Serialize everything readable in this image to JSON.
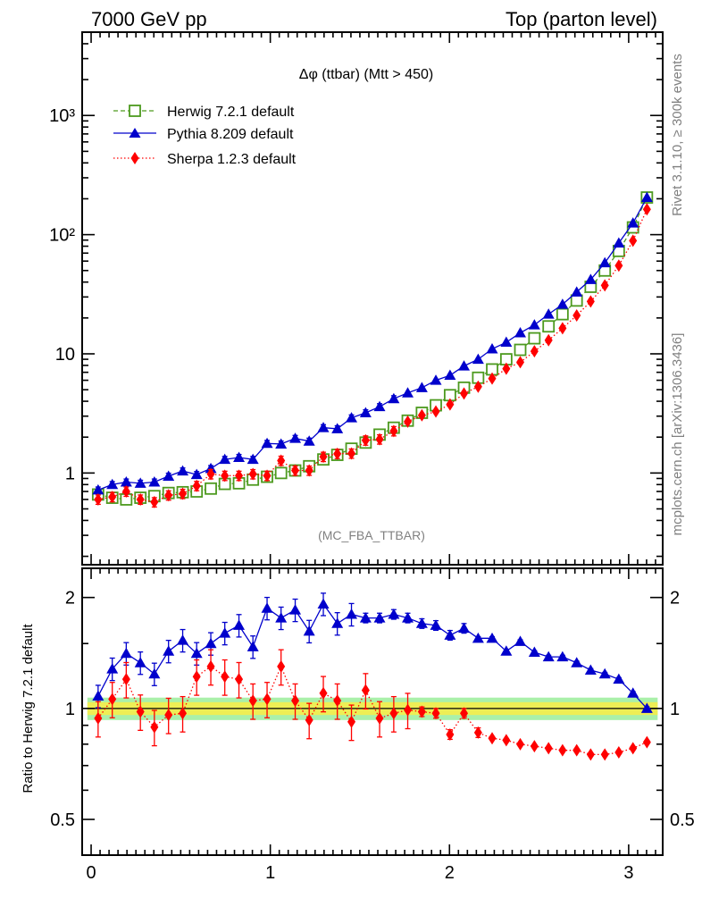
{
  "header": {
    "left": "7000 GeV pp",
    "right": "Top (parton level)"
  },
  "side": {
    "rivet": "Rivet 3.1.10, ≥ 300k events",
    "mcplots": "mcplots.cern.ch [arXiv:1306.3436]"
  },
  "chart_data": [
    {
      "type": "line",
      "panel": "main",
      "title": "Δφ (ttbar) (Mtt > 450)",
      "watermark": "(MC_FBA_TTBAR)",
      "y_scale": "log",
      "ylim": [
        0.17,
        5000
      ],
      "xlim": [
        -0.05,
        3.19
      ],
      "y_ticks": [
        {
          "value": 1,
          "label": "1"
        },
        {
          "value": 10,
          "label": "10"
        },
        {
          "value": 100,
          "label": "10²"
        },
        {
          "value": 1000,
          "label": "10³"
        }
      ],
      "legend_position": "top-left",
      "x": [
        0.039,
        0.118,
        0.196,
        0.275,
        0.353,
        0.432,
        0.511,
        0.589,
        0.668,
        0.746,
        0.825,
        0.903,
        0.982,
        1.06,
        1.139,
        1.217,
        1.296,
        1.374,
        1.453,
        1.532,
        1.61,
        1.689,
        1.767,
        1.846,
        1.924,
        2.003,
        2.081,
        2.16,
        2.238,
        2.317,
        2.395,
        2.474,
        2.553,
        2.631,
        2.71,
        2.788,
        2.867,
        2.945,
        3.024,
        3.102
      ],
      "series": [
        {
          "name": "Herwig 7.2.1 default",
          "color": "#4d9a1f",
          "marker": "open-square",
          "line": "dashed",
          "values": [
            0.66,
            0.62,
            0.6,
            0.62,
            0.64,
            0.68,
            0.69,
            0.7,
            0.74,
            0.81,
            0.82,
            0.88,
            0.93,
            1.0,
            1.05,
            1.14,
            1.3,
            1.42,
            1.6,
            1.8,
            2.1,
            2.4,
            2.75,
            3.2,
            3.7,
            4.5,
            5.2,
            6.3,
            7.4,
            9.0,
            10.8,
            13.5,
            17.0,
            21.5,
            28.0,
            36.5,
            50.0,
            73.0,
            115.0,
            205.0
          ]
        },
        {
          "name": "Pythia 8.209 default",
          "color": "#0000cc",
          "marker": "filled-triangle",
          "line": "solid",
          "values": [
            0.72,
            0.8,
            0.84,
            0.82,
            0.84,
            0.94,
            1.04,
            0.97,
            1.09,
            1.3,
            1.35,
            1.3,
            1.77,
            1.75,
            1.95,
            1.85,
            2.4,
            2.35,
            2.9,
            3.2,
            3.6,
            4.2,
            4.7,
            5.2,
            6.0,
            6.6,
            7.9,
            9.0,
            11.0,
            12.5,
            15.0,
            17.5,
            21.5,
            26.0,
            33.0,
            42.0,
            58.0,
            85.0,
            125.0,
            205.0
          ]
        },
        {
          "name": "Sherpa 1.2.3 default",
          "color": "#ff0000",
          "marker": "filled-diamond",
          "line": "dotted",
          "values": [
            0.6,
            0.63,
            0.7,
            0.6,
            0.57,
            0.65,
            0.67,
            0.78,
            0.98,
            0.95,
            0.95,
            0.98,
            0.95,
            1.27,
            1.05,
            1.05,
            1.37,
            1.45,
            1.46,
            1.88,
            1.92,
            2.25,
            2.7,
            3.05,
            3.28,
            3.76,
            4.65,
            5.3,
            6.2,
            7.5,
            8.5,
            10.5,
            13.0,
            16.4,
            21.0,
            27.5,
            37.5,
            55.0,
            89.0,
            163.0
          ]
        }
      ]
    },
    {
      "type": "line",
      "panel": "ratio",
      "ylabel": "Ratio to Herwig 7.2.1 default",
      "y_scale": "log",
      "ylim": [
        0.4,
        2.4
      ],
      "xlim": [
        -0.05,
        3.19
      ],
      "x_ticks": [
        {
          "value": 0,
          "label": "0"
        },
        {
          "value": 1,
          "label": "1"
        },
        {
          "value": 2,
          "label": "2"
        },
        {
          "value": 3,
          "label": "3"
        }
      ],
      "y_ticks": [
        {
          "value": 0.5,
          "label": "0.5"
        },
        {
          "value": 1,
          "label": "1"
        },
        {
          "value": 2,
          "label": "2"
        }
      ],
      "band": {
        "inner": [
          0.96,
          1.04
        ],
        "outer": [
          0.93,
          1.07
        ],
        "inner_color": "#eeee55",
        "outer_color": "#aaf0aa"
      },
      "x": [
        0.039,
        0.118,
        0.196,
        0.275,
        0.353,
        0.432,
        0.511,
        0.589,
        0.668,
        0.746,
        0.825,
        0.903,
        0.982,
        1.06,
        1.139,
        1.217,
        1.296,
        1.374,
        1.453,
        1.532,
        1.61,
        1.689,
        1.767,
        1.846,
        1.924,
        2.003,
        2.081,
        2.16,
        2.238,
        2.317,
        2.395,
        2.474,
        2.553,
        2.631,
        2.71,
        2.788,
        2.867,
        2.945,
        3.024,
        3.102
      ],
      "series": [
        {
          "name": "Pythia 8.209 default",
          "color": "#0000cc",
          "values": [
            1.08,
            1.28,
            1.41,
            1.33,
            1.24,
            1.43,
            1.53,
            1.41,
            1.5,
            1.6,
            1.68,
            1.47,
            1.87,
            1.76,
            1.85,
            1.62,
            1.92,
            1.7,
            1.8,
            1.76,
            1.76,
            1.8,
            1.76,
            1.7,
            1.68,
            1.58,
            1.65,
            1.55,
            1.55,
            1.43,
            1.52,
            1.42,
            1.38,
            1.38,
            1.33,
            1.27,
            1.24,
            1.2,
            1.1,
            1.0
          ]
        },
        {
          "name": "Sherpa 1.2.3 default",
          "color": "#ff0000",
          "values": [
            0.94,
            1.06,
            1.2,
            0.98,
            0.89,
            0.96,
            0.97,
            1.22,
            1.3,
            1.22,
            1.2,
            1.05,
            1.06,
            1.3,
            1.05,
            0.93,
            1.1,
            1.05,
            0.92,
            1.12,
            0.94,
            0.97,
            0.99,
            0.98,
            0.97,
            0.85,
            0.97,
            0.86,
            0.83,
            0.82,
            0.8,
            0.79,
            0.78,
            0.77,
            0.77,
            0.75,
            0.75,
            0.76,
            0.78,
            0.81
          ]
        }
      ]
    }
  ]
}
